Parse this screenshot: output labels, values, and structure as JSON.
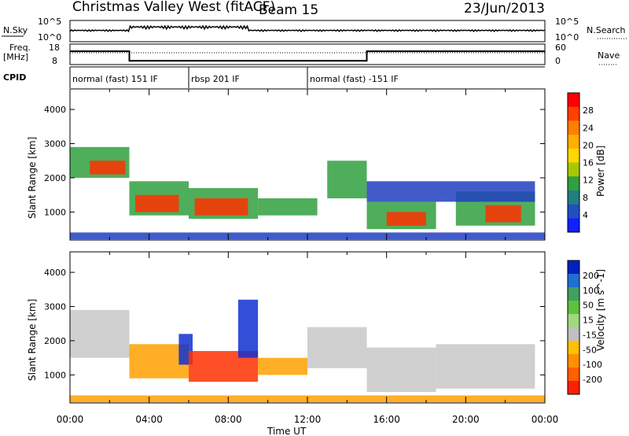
{
  "header": {
    "title": "Christmas Valley West (fitACF)",
    "beam": "Beam 15",
    "date": "23/Jun/2013"
  },
  "nsky_panel": {
    "label": "N.Sky",
    "left_ticks": [
      "10^5",
      "10^0"
    ],
    "right_ticks": [
      "10^5",
      "10^0"
    ],
    "right_label": "N.Search"
  },
  "freq_panel": {
    "label_line1": "Freq.",
    "label_line2": "[MHz]",
    "left_ticks": [
      "18",
      "8"
    ],
    "right_ticks": [
      "60",
      "0"
    ],
    "right_label": "Nave",
    "freq_steps": [
      {
        "t": 0,
        "v": 14.5
      },
      {
        "t": 3.0,
        "v": 14.5
      },
      {
        "t": 3.0,
        "v": 9.8
      },
      {
        "t": 15.0,
        "v": 9.8
      },
      {
        "t": 15.0,
        "v": 14.5
      },
      {
        "t": 24,
        "v": 14.5
      }
    ]
  },
  "cpid_panel": {
    "label": "CPID",
    "segments": [
      {
        "start": 0,
        "end": 6.0,
        "text": "normal (fast) 151 IF"
      },
      {
        "start": 6.0,
        "end": 12.0,
        "text": "rbsp 201 IF"
      },
      {
        "start": 12.0,
        "end": 24,
        "text": "normal (fast) -151 IF"
      }
    ]
  },
  "chart_data": [
    {
      "type": "heatmap",
      "name": "power",
      "ylabel": "Slant Range [km]",
      "yticks": [
        "1000",
        "2000",
        "3000",
        "4000"
      ],
      "ylim": [
        180,
        4600
      ],
      "xlim": [
        0,
        24
      ],
      "colorbar_label": "Power [dB]",
      "colorbar_ticks": [
        "28",
        "24",
        "20",
        "16",
        "12",
        "8",
        "4"
      ],
      "colorbar_colors": [
        "#ff0000",
        "#ff4000",
        "#ff8000",
        "#ffb000",
        "#ffd800",
        "#a8c800",
        "#30a040",
        "#208080",
        "#2050c0",
        "#1020ff"
      ],
      "bands": [
        {
          "t0": 0.0,
          "t1": 3.0,
          "r0": 2000,
          "r1": 2900,
          "level": "mid"
        },
        {
          "t0": 1.0,
          "t1": 2.8,
          "r0": 2100,
          "r1": 2500,
          "level": "high"
        },
        {
          "t0": 3.0,
          "t1": 6.0,
          "r0": 900,
          "r1": 1900,
          "level": "mid"
        },
        {
          "t0": 3.3,
          "t1": 5.5,
          "r0": 1000,
          "r1": 1500,
          "level": "high"
        },
        {
          "t0": 6.0,
          "t1": 9.5,
          "r0": 800,
          "r1": 1700,
          "level": "mid"
        },
        {
          "t0": 6.3,
          "t1": 9.0,
          "r0": 900,
          "r1": 1400,
          "level": "high"
        },
        {
          "t0": 9.5,
          "t1": 12.5,
          "r0": 900,
          "r1": 1400,
          "level": "mid"
        },
        {
          "t0": 13.0,
          "t1": 15.0,
          "r0": 1400,
          "r1": 2500,
          "level": "mid"
        },
        {
          "t0": 15.0,
          "t1": 18.5,
          "r0": 500,
          "r1": 1300,
          "level": "mid"
        },
        {
          "t0": 16.0,
          "t1": 18.0,
          "r0": 600,
          "r1": 1000,
          "level": "high"
        },
        {
          "t0": 19.5,
          "t1": 23.5,
          "r0": 600,
          "r1": 1600,
          "level": "mid"
        },
        {
          "t0": 21.0,
          "t1": 22.8,
          "r0": 700,
          "r1": 1200,
          "level": "high"
        },
        {
          "t0": 15.0,
          "t1": 23.5,
          "r0": 1300,
          "r1": 1900,
          "level": "low"
        },
        {
          "t0": 0.0,
          "t1": 24.0,
          "r0": 200,
          "r1": 400,
          "level": "low"
        }
      ]
    },
    {
      "type": "heatmap",
      "name": "velocity",
      "ylabel": "Slant Range [km]",
      "yticks": [
        "1000",
        "2000",
        "3000",
        "4000"
      ],
      "ylim": [
        180,
        4600
      ],
      "xlim": [
        0,
        24
      ],
      "xlabel": "Time UT",
      "xticks": [
        "00:00",
        "04:00",
        "08:00",
        "12:00",
        "16:00",
        "20:00",
        "00:00"
      ],
      "colorbar_label": "Velocity [m s^-1]",
      "colorbar_ticks": [
        "200",
        "100",
        "50",
        "15",
        "-15",
        "-50",
        "-100",
        "-200"
      ],
      "colorbar_colors": [
        "#0020c0",
        "#2070d0",
        "#40a060",
        "#60c040",
        "#a0d880",
        "#c0c0c0",
        "#ffc000",
        "#ff9000",
        "#ff6000",
        "#ff2000"
      ],
      "bands": [
        {
          "t0": 0.0,
          "t1": 3.0,
          "r0": 1500,
          "r1": 2900,
          "level": "zero"
        },
        {
          "t0": 3.0,
          "t1": 6.0,
          "r0": 900,
          "r1": 1900,
          "level": "neg"
        },
        {
          "t0": 5.5,
          "t1": 6.2,
          "r0": 1300,
          "r1": 2200,
          "level": "pos"
        },
        {
          "t0": 6.0,
          "t1": 9.5,
          "r0": 800,
          "r1": 1700,
          "level": "negstrong"
        },
        {
          "t0": 9.5,
          "t1": 12.0,
          "r0": 1000,
          "r1": 1500,
          "level": "neg"
        },
        {
          "t0": 8.5,
          "t1": 9.5,
          "r0": 1500,
          "r1": 3200,
          "level": "pos"
        },
        {
          "t0": 12.0,
          "t1": 15.0,
          "r0": 1200,
          "r1": 2400,
          "level": "zero"
        },
        {
          "t0": 15.0,
          "t1": 18.5,
          "r0": 500,
          "r1": 1800,
          "level": "zero"
        },
        {
          "t0": 18.5,
          "t1": 23.5,
          "r0": 600,
          "r1": 1900,
          "level": "zero"
        },
        {
          "t0": 0.0,
          "t1": 24.0,
          "r0": 200,
          "r1": 400,
          "level": "neg"
        }
      ]
    }
  ]
}
